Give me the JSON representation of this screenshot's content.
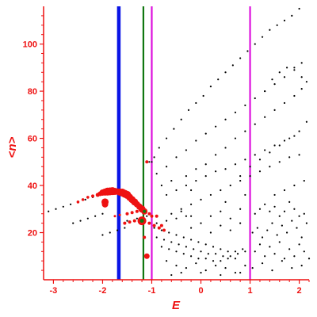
{
  "chart_data": {
    "type": "scatter",
    "xlabel": "E",
    "ylabel": "<n>",
    "xlim": [
      -3.2,
      2.2
    ],
    "ylim": [
      0,
      116
    ],
    "xticks": [
      "-3",
      "-2",
      "-1",
      "0",
      "1",
      "2"
    ],
    "yticks": [
      "20",
      "40",
      "60",
      "80",
      "100"
    ],
    "grid": false,
    "vertical_lines": [
      {
        "x": -1.67,
        "color": "#0a14e6",
        "width": "thick"
      },
      {
        "x": -1.17,
        "color": "#117711",
        "width": "medium"
      },
      {
        "x": -1.0,
        "color": "#dd11dd",
        "width": "medium"
      },
      {
        "x": 1.0,
        "color": "#dd11dd",
        "width": "medium"
      }
    ],
    "series": [
      {
        "color": "#000000",
        "points": [
          [
            -3.1,
            29
          ],
          [
            -2.95,
            30
          ],
          [
            -2.8,
            31
          ],
          [
            -2.65,
            32
          ],
          [
            -2.5,
            33
          ],
          [
            -2.35,
            34
          ],
          [
            -2.2,
            35
          ],
          [
            -2.6,
            24
          ],
          [
            -2.45,
            25
          ],
          [
            -2.3,
            26
          ],
          [
            -2.15,
            27
          ],
          [
            -2.0,
            28
          ],
          [
            -2.0,
            19
          ],
          [
            -1.85,
            20
          ],
          [
            -1.7,
            21
          ],
          [
            -1.55,
            22
          ],
          [
            -1.05,
            50
          ],
          [
            -1.0,
            50
          ],
          [
            -0.95,
            52
          ],
          [
            -0.85,
            56
          ],
          [
            -0.7,
            60
          ],
          [
            -0.55,
            64
          ],
          [
            -0.4,
            68
          ],
          [
            -0.25,
            72
          ],
          [
            -0.1,
            75
          ],
          [
            0.05,
            78
          ],
          [
            0.2,
            82
          ],
          [
            0.35,
            85
          ],
          [
            0.5,
            88
          ],
          [
            0.65,
            91
          ],
          [
            0.8,
            94
          ],
          [
            0.95,
            97
          ],
          [
            1.1,
            100
          ],
          [
            1.25,
            103
          ],
          [
            1.4,
            106
          ],
          [
            1.55,
            108
          ],
          [
            1.7,
            110
          ],
          [
            1.85,
            112
          ],
          [
            2.0,
            115
          ],
          [
            -0.9,
            45
          ],
          [
            -0.7,
            48
          ],
          [
            -0.5,
            52
          ],
          [
            -0.3,
            55
          ],
          [
            -0.1,
            59
          ],
          [
            0.1,
            62
          ],
          [
            0.3,
            65
          ],
          [
            0.5,
            68
          ],
          [
            0.7,
            71
          ],
          [
            0.9,
            74
          ],
          [
            1.1,
            77
          ],
          [
            1.3,
            80
          ],
          [
            1.5,
            83
          ],
          [
            1.7,
            86
          ],
          [
            1.9,
            89
          ],
          [
            2.05,
            92
          ],
          [
            -0.3,
            44
          ],
          [
            -0.1,
            47
          ],
          [
            0.1,
            49
          ],
          [
            0.3,
            53
          ],
          [
            0.5,
            56
          ],
          [
            0.7,
            60
          ],
          [
            0.9,
            63
          ],
          [
            1.1,
            66
          ],
          [
            1.3,
            69
          ],
          [
            1.5,
            72
          ],
          [
            1.7,
            75
          ],
          [
            1.9,
            78
          ],
          [
            2.05,
            81
          ],
          [
            1.3,
            80
          ],
          [
            1.45,
            85
          ],
          [
            1.6,
            88
          ],
          [
            1.75,
            90
          ],
          [
            1.9,
            90
          ],
          [
            2.05,
            86
          ],
          [
            2.15,
            84
          ],
          [
            0.8,
            44
          ],
          [
            1.0,
            48
          ],
          [
            1.2,
            51
          ],
          [
            1.4,
            54
          ],
          [
            1.6,
            57
          ],
          [
            1.8,
            60
          ],
          [
            2.0,
            63
          ],
          [
            2.15,
            67
          ],
          [
            -0.7,
            36
          ],
          [
            -0.5,
            38
          ],
          [
            -0.3,
            40
          ],
          [
            -0.1,
            42
          ],
          [
            0.1,
            44
          ],
          [
            0.3,
            46
          ],
          [
            0.5,
            47
          ],
          [
            0.7,
            49
          ],
          [
            0.9,
            51
          ],
          [
            1.1,
            53
          ],
          [
            1.3,
            55
          ],
          [
            1.5,
            57
          ],
          [
            1.7,
            59
          ],
          [
            1.9,
            61
          ],
          [
            -0.4,
            30
          ],
          [
            -0.2,
            32
          ],
          [
            0.0,
            34
          ],
          [
            0.2,
            36
          ],
          [
            0.4,
            38
          ],
          [
            0.6,
            40
          ],
          [
            0.8,
            42
          ],
          [
            1.0,
            44
          ],
          [
            1.2,
            46
          ],
          [
            1.4,
            48
          ],
          [
            1.6,
            50
          ],
          [
            1.8,
            52
          ],
          [
            2.0,
            53
          ],
          [
            -1.5,
            25
          ],
          [
            -1.3,
            26
          ],
          [
            -1.1,
            27
          ],
          [
            -0.9,
            24
          ],
          [
            -0.7,
            25
          ],
          [
            -0.5,
            26
          ],
          [
            -0.3,
            27
          ],
          [
            -0.95,
            22
          ],
          [
            -0.8,
            21
          ],
          [
            -0.65,
            20
          ],
          [
            -0.5,
            19
          ],
          [
            -0.35,
            18
          ],
          [
            -0.2,
            17
          ],
          [
            -0.05,
            16
          ],
          [
            0.1,
            15
          ],
          [
            0.25,
            14
          ],
          [
            0.4,
            13
          ],
          [
            0.55,
            12
          ],
          [
            0.7,
            12
          ],
          [
            0.85,
            13
          ],
          [
            -0.9,
            18
          ],
          [
            -0.75,
            17
          ],
          [
            -0.6,
            16
          ],
          [
            -0.45,
            15
          ],
          [
            -0.3,
            14
          ],
          [
            -0.15,
            13
          ],
          [
            0.0,
            12
          ],
          [
            0.15,
            11
          ],
          [
            0.3,
            11
          ],
          [
            0.45,
            10
          ],
          [
            0.6,
            10
          ],
          [
            0.75,
            11
          ],
          [
            0.9,
            12
          ],
          [
            -0.8,
            14
          ],
          [
            -0.65,
            13
          ],
          [
            -0.5,
            12
          ],
          [
            -0.35,
            11
          ],
          [
            -0.2,
            10
          ],
          [
            -0.05,
            9
          ],
          [
            0.1,
            9
          ],
          [
            0.25,
            8
          ],
          [
            0.4,
            8
          ],
          [
            0.55,
            9
          ],
          [
            0.7,
            9
          ],
          [
            -0.7,
            8
          ],
          [
            -0.5,
            6
          ],
          [
            -0.3,
            5
          ],
          [
            -0.1,
            7
          ],
          [
            0.1,
            4
          ],
          [
            0.3,
            6
          ],
          [
            0.5,
            5
          ],
          [
            0.7,
            3
          ],
          [
            0.9,
            6
          ],
          [
            -0.6,
            2
          ],
          [
            -0.4,
            3
          ],
          [
            0.0,
            3
          ],
          [
            0.4,
            2
          ],
          [
            0.8,
            3
          ],
          [
            1.1,
            28
          ],
          [
            1.2,
            30
          ],
          [
            1.3,
            32
          ],
          [
            1.4,
            29
          ],
          [
            1.5,
            31
          ],
          [
            1.6,
            27
          ],
          [
            1.7,
            29
          ],
          [
            1.8,
            33
          ],
          [
            1.9,
            30
          ],
          [
            2.0,
            27
          ],
          [
            2.1,
            28
          ],
          [
            1.05,
            20
          ],
          [
            1.15,
            22
          ],
          [
            1.25,
            18
          ],
          [
            1.35,
            21
          ],
          [
            1.45,
            24
          ],
          [
            1.55,
            19
          ],
          [
            1.65,
            23
          ],
          [
            1.75,
            20
          ],
          [
            1.85,
            25
          ],
          [
            1.95,
            22
          ],
          [
            2.05,
            18
          ],
          [
            2.15,
            24
          ],
          [
            1.1,
            12
          ],
          [
            1.2,
            15
          ],
          [
            1.3,
            10
          ],
          [
            1.4,
            14
          ],
          [
            1.5,
            11
          ],
          [
            1.6,
            16
          ],
          [
            1.7,
            9
          ],
          [
            1.8,
            13
          ],
          [
            1.9,
            10
          ],
          [
            2.0,
            15
          ],
          [
            2.1,
            12
          ],
          [
            2.2,
            9
          ],
          [
            1.05,
            5
          ],
          [
            1.25,
            7
          ],
          [
            1.45,
            4
          ],
          [
            1.65,
            8
          ],
          [
            1.85,
            5
          ],
          [
            2.05,
            6
          ],
          [
            -0.2,
            22
          ],
          [
            0.0,
            24
          ],
          [
            0.2,
            20
          ],
          [
            0.4,
            23
          ],
          [
            0.6,
            21
          ],
          [
            0.8,
            24
          ],
          [
            0.2,
            27
          ],
          [
            0.4,
            29
          ],
          [
            0.6,
            26
          ],
          [
            0.8,
            30
          ],
          [
            -0.6,
            28
          ],
          [
            -0.4,
            29
          ],
          [
            -0.2,
            27
          ],
          [
            1.7,
            38
          ],
          [
            1.9,
            40
          ],
          [
            2.1,
            42
          ],
          [
            1.5,
            36
          ],
          [
            -0.8,
            40
          ],
          [
            -0.6,
            42
          ],
          [
            -0.2,
            38
          ],
          [
            0.5,
            33
          ],
          [
            0.9,
            36
          ]
        ]
      },
      {
        "color": "#ee1111",
        "points": [
          [
            -2.5,
            33,
            1.8
          ],
          [
            -2.4,
            34,
            1.8
          ],
          [
            -2.3,
            35,
            1.8
          ],
          [
            -2.2,
            35.5,
            2
          ],
          [
            -2.1,
            36,
            2.5
          ],
          [
            -2.05,
            36.5,
            3
          ],
          [
            -2.0,
            37,
            4
          ],
          [
            -1.95,
            37.2,
            4.5
          ],
          [
            -1.9,
            37.4,
            5
          ],
          [
            -1.85,
            37.5,
            5
          ],
          [
            -1.8,
            37.6,
            5
          ],
          [
            -1.75,
            37.5,
            4.5
          ],
          [
            -1.7,
            37.4,
            4
          ],
          [
            -1.65,
            37.2,
            4.5
          ],
          [
            -1.6,
            37.0,
            5
          ],
          [
            -1.55,
            36.5,
            5
          ],
          [
            -1.5,
            36,
            5
          ],
          [
            -1.45,
            35,
            4.5
          ],
          [
            -1.4,
            34,
            4.5
          ],
          [
            -1.35,
            33,
            4.5
          ],
          [
            -1.3,
            32,
            4
          ],
          [
            -1.25,
            31,
            4
          ],
          [
            -1.2,
            30,
            4.5
          ],
          [
            -1.15,
            29,
            4
          ],
          [
            -1.95,
            33,
            4.5
          ],
          [
            -1.95,
            32,
            4
          ],
          [
            -1.2,
            25,
            5.5
          ],
          [
            -1.5,
            28,
            2
          ],
          [
            -1.4,
            28.5,
            2
          ],
          [
            -1.3,
            29,
            2
          ],
          [
            -1.75,
            27,
            1.5
          ],
          [
            -1.65,
            27.5,
            1.5
          ],
          [
            -1.55,
            24,
            2
          ],
          [
            -1.45,
            24.5,
            2
          ],
          [
            -1.35,
            25,
            2
          ],
          [
            -1.05,
            24,
            2
          ],
          [
            -0.95,
            23,
            2
          ],
          [
            -0.85,
            22,
            2
          ],
          [
            -0.75,
            21,
            2
          ],
          [
            -1.1,
            50,
            2
          ],
          [
            -1.05,
            28,
            2
          ],
          [
            -1.0,
            27,
            2
          ],
          [
            -0.9,
            27,
            2
          ],
          [
            -1.1,
            10,
            3.5
          ],
          [
            -1.15,
            18,
            2
          ],
          [
            -0.8,
            23,
            2
          ]
        ]
      }
    ]
  }
}
